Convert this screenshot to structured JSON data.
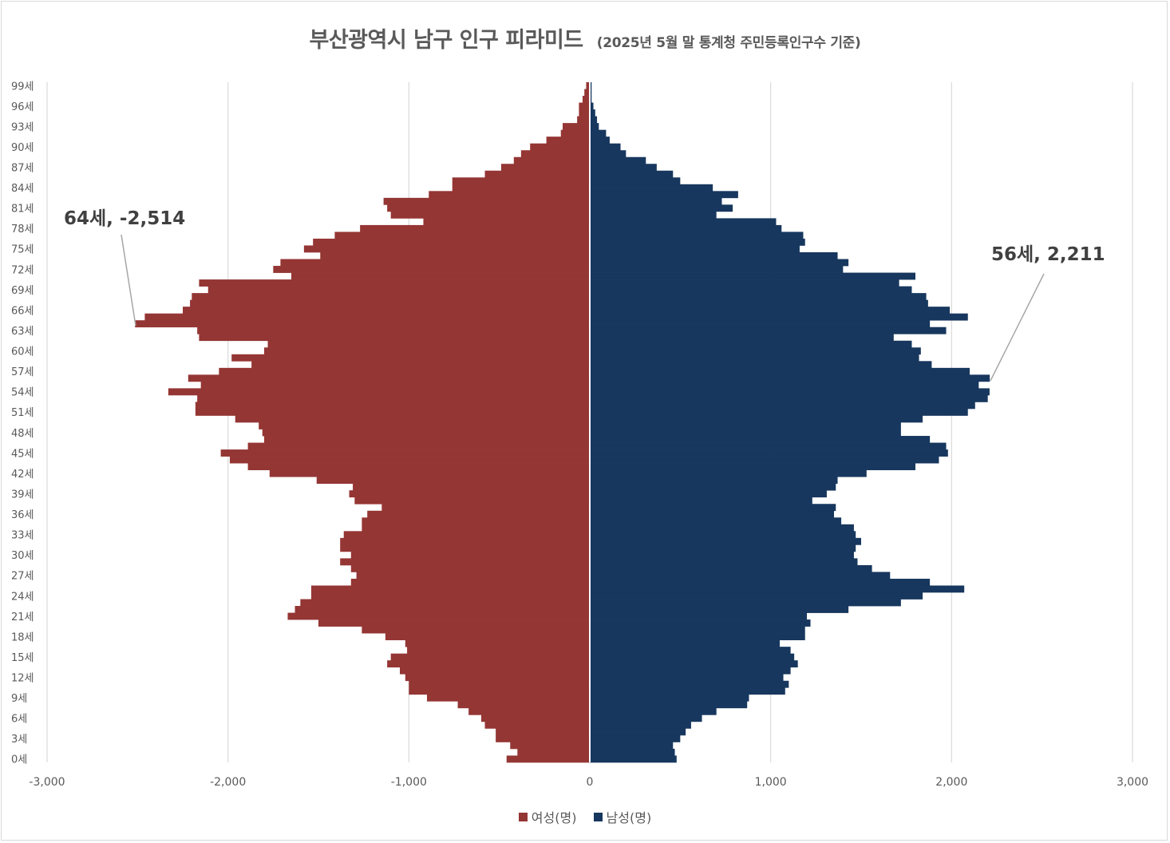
{
  "window": {
    "title": "부산광역시 남구 인구 피라미드",
    "subtitle": "(2025년 5월 말 통계청 주민등록인구수 기준)"
  },
  "legend": {
    "female_label": "여성(명)",
    "male_label": "남성(명)"
  },
  "colors": {
    "female": "#943634",
    "male": "#17375e",
    "grid": "#d9d9d9",
    "text": "#595959"
  },
  "annotations": {
    "female_peak": "64세, -2,514",
    "male_peak": "56세, 2,211"
  },
  "chart_data": {
    "type": "bar",
    "orientation": "horizontal",
    "title": "부산광역시 남구 인구 피라미드",
    "subtitle": "(2025년 5월 말 통계청 주민등록인구수 기준)",
    "xlim": [
      -3000,
      3000
    ],
    "x_ticks": [
      "-3,000",
      "-2,000",
      "-1,000",
      "0",
      "1,000",
      "2,000",
      "3,000"
    ],
    "x_tick_values": [
      -3000,
      -2000,
      -1000,
      0,
      1000,
      2000,
      3000
    ],
    "y_tick_labels": [
      "0세",
      "3세",
      "6세",
      "9세",
      "12세",
      "15세",
      "18세",
      "21세",
      "24세",
      "27세",
      "30세",
      "33세",
      "36세",
      "39세",
      "42세",
      "45세",
      "48세",
      "51세",
      "54세",
      "57세",
      "60세",
      "63세",
      "66세",
      "69세",
      "72세",
      "75세",
      "78세",
      "81세",
      "84세",
      "87세",
      "90세",
      "93세",
      "96세",
      "99세"
    ],
    "y_tick_ages": [
      0,
      3,
      6,
      9,
      12,
      15,
      18,
      21,
      24,
      27,
      30,
      33,
      36,
      39,
      42,
      45,
      48,
      51,
      54,
      57,
      60,
      63,
      66,
      69,
      72,
      75,
      78,
      81,
      84,
      87,
      90,
      93,
      96,
      99
    ],
    "grid": true,
    "legend_position": "bottom",
    "categories": [
      0,
      1,
      2,
      3,
      4,
      5,
      6,
      7,
      8,
      9,
      10,
      11,
      12,
      13,
      14,
      15,
      16,
      17,
      18,
      19,
      20,
      21,
      22,
      23,
      24,
      25,
      26,
      27,
      28,
      29,
      30,
      31,
      32,
      33,
      34,
      35,
      36,
      37,
      38,
      39,
      40,
      41,
      42,
      43,
      44,
      45,
      46,
      47,
      48,
      49,
      50,
      51,
      52,
      53,
      54,
      55,
      56,
      57,
      58,
      59,
      60,
      61,
      62,
      63,
      64,
      65,
      66,
      67,
      68,
      69,
      70,
      71,
      72,
      73,
      74,
      75,
      76,
      77,
      78,
      79,
      80,
      81,
      82,
      83,
      84,
      85,
      86,
      87,
      88,
      89,
      90,
      91,
      92,
      93,
      94,
      95,
      96,
      97,
      98,
      99
    ],
    "series": [
      {
        "name": "여성(명)",
        "values": [
          -460,
          -400,
          -440,
          -520,
          -520,
          -580,
          -600,
          -670,
          -730,
          -900,
          -1000,
          -1000,
          -1020,
          -1050,
          -1120,
          -1100,
          -1010,
          -1020,
          -1130,
          -1260,
          -1500,
          -1670,
          -1630,
          -1600,
          -1540,
          -1540,
          -1320,
          -1290,
          -1320,
          -1380,
          -1320,
          -1380,
          -1380,
          -1360,
          -1260,
          -1260,
          -1230,
          -1150,
          -1300,
          -1330,
          -1310,
          -1510,
          -1770,
          -1890,
          -1990,
          -2040,
          -1890,
          -1800,
          -1810,
          -1830,
          -1960,
          -2180,
          -2180,
          -2170,
          -2330,
          -2150,
          -2220,
          -2050,
          -1870,
          -1980,
          -1800,
          -1780,
          -2160,
          -2170,
          -2514,
          -2460,
          -2250,
          -2210,
          -2200,
          -2110,
          -2160,
          -1650,
          -1750,
          -1710,
          -1490,
          -1580,
          -1530,
          -1410,
          -1270,
          -920,
          -1100,
          -1120,
          -1140,
          -890,
          -760,
          -760,
          -580,
          -490,
          -420,
          -380,
          -330,
          -240,
          -160,
          -150,
          -70,
          -60,
          -60,
          -40,
          -30,
          -20
        ]
      },
      {
        "name": "남성(명)",
        "values": [
          480,
          470,
          460,
          500,
          530,
          560,
          620,
          700,
          870,
          880,
          1080,
          1100,
          1070,
          1110,
          1150,
          1130,
          1110,
          1050,
          1190,
          1190,
          1220,
          1200,
          1430,
          1720,
          1840,
          2070,
          1880,
          1660,
          1560,
          1480,
          1460,
          1470,
          1500,
          1470,
          1460,
          1390,
          1350,
          1360,
          1230,
          1310,
          1360,
          1370,
          1530,
          1800,
          1930,
          1980,
          1970,
          1880,
          1720,
          1720,
          1840,
          2090,
          2130,
          2200,
          2210,
          2150,
          2211,
          2100,
          1890,
          1820,
          1830,
          1780,
          1680,
          1970,
          1880,
          2090,
          1990,
          1870,
          1860,
          1780,
          1710,
          1800,
          1400,
          1430,
          1370,
          1160,
          1190,
          1180,
          1060,
          1030,
          700,
          790,
          730,
          820,
          680,
          500,
          460,
          370,
          310,
          200,
          170,
          110,
          90,
          50,
          40,
          30,
          20,
          10,
          10,
          10
        ]
      }
    ]
  }
}
